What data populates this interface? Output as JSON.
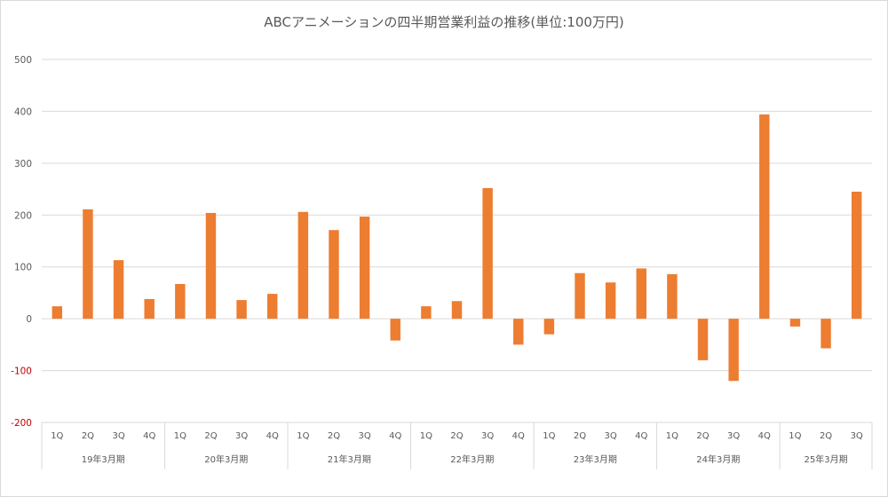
{
  "chart_data": {
    "type": "bar",
    "title": "ABCアニメーションの四半期営業利益の推移(単位:100万円)",
    "xlabel": "",
    "ylabel": "",
    "ylim": [
      -200,
      500
    ],
    "yticks": [
      -200,
      -100,
      0,
      100,
      200,
      300,
      400,
      500
    ],
    "grid": true,
    "legend": "none",
    "colors": {
      "bar": "#ed7d31",
      "grid": "#d9d9d9",
      "tick": "#595959",
      "negative_tick": "#c00000"
    },
    "groups": [
      {
        "label": "19年3月期",
        "quarters": [
          "1Q",
          "2Q",
          "3Q",
          "4Q"
        ]
      },
      {
        "label": "20年3月期",
        "quarters": [
          "1Q",
          "2Q",
          "3Q",
          "4Q"
        ]
      },
      {
        "label": "21年3月期",
        "quarters": [
          "1Q",
          "2Q",
          "3Q",
          "4Q"
        ]
      },
      {
        "label": "22年3月期",
        "quarters": [
          "1Q",
          "2Q",
          "3Q",
          "4Q"
        ]
      },
      {
        "label": "23年3月期",
        "quarters": [
          "1Q",
          "2Q",
          "3Q",
          "4Q"
        ]
      },
      {
        "label": "24年3月期",
        "quarters": [
          "1Q",
          "2Q",
          "3Q",
          "4Q"
        ]
      },
      {
        "label": "25年3月期",
        "quarters": [
          "1Q",
          "2Q",
          "3Q"
        ]
      }
    ],
    "values": [
      24,
      211,
      113,
      38,
      67,
      204,
      36,
      48,
      206,
      171,
      197,
      -42,
      24,
      34,
      252,
      -50,
      -30,
      88,
      70,
      97,
      86,
      -80,
      -120,
      394,
      -15,
      -57,
      245
    ]
  }
}
